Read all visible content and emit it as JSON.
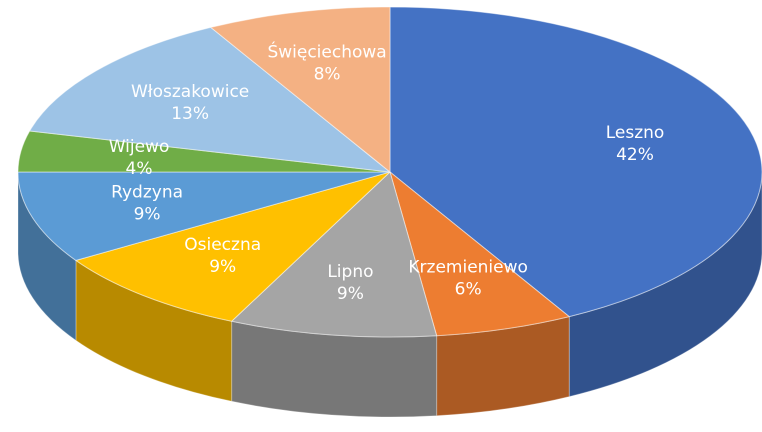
{
  "chart_data": {
    "type": "pie",
    "categories": [
      "Leszno",
      "Krzemieniewo",
      "Lipno",
      "Osieczna",
      "Rydzyna",
      "Wijewo",
      "Włoszakowice",
      "Święciechowa"
    ],
    "values": [
      42,
      6,
      9,
      9,
      9,
      4,
      13,
      8
    ],
    "value_labels": [
      "42%",
      "6%",
      "9%",
      "9%",
      "9%",
      "4%",
      "13%",
      "8%"
    ],
    "colors": [
      "#4472c4",
      "#ed7d31",
      "#a5a5a5",
      "#ffc000",
      "#5b9bd5",
      "#70ad47",
      "#9dc3e6",
      "#f4b183"
    ]
  }
}
